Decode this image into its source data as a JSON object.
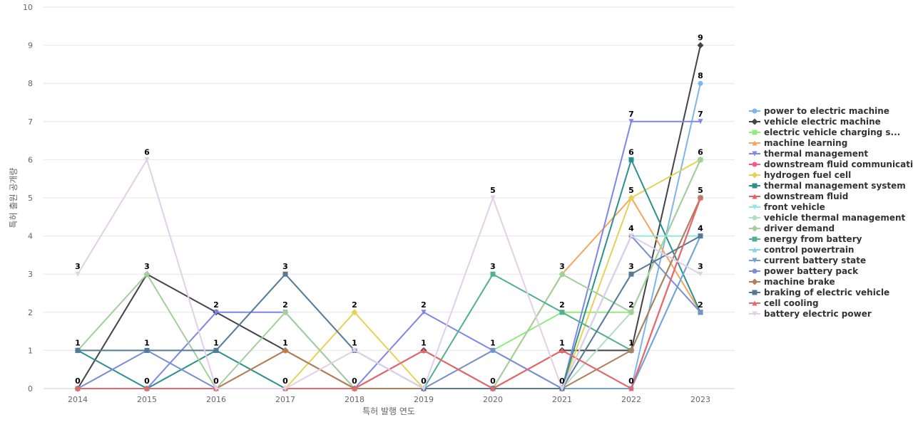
{
  "chart_data": {
    "type": "line",
    "title": "",
    "xlabel": "특허 발행 연도",
    "ylabel": "특허 출원 공개량",
    "x": [
      "2014",
      "2015",
      "2016",
      "2017",
      "2018",
      "2019",
      "2020",
      "2021",
      "2022",
      "2023"
    ],
    "ylim": [
      0,
      10
    ],
    "yticks": [
      0,
      1,
      2,
      3,
      4,
      5,
      6,
      7,
      8,
      9,
      10
    ],
    "grid": true,
    "legend": "right",
    "series": [
      {
        "name": "power to electric machine",
        "color": "#7cb5ec",
        "marker": "circle",
        "values": [
          0,
          0,
          0,
          0,
          0,
          0,
          0,
          0,
          0,
          8
        ]
      },
      {
        "name": "vehicle electric machine",
        "color": "#434348",
        "marker": "diamond",
        "values": [
          0,
          3,
          2,
          1,
          0,
          1,
          0,
          1,
          1,
          9
        ]
      },
      {
        "name": "electric vehicle charging s...",
        "color": "#90ed7d",
        "marker": "square",
        "values": [
          0,
          0,
          0,
          0,
          0,
          0,
          1,
          2,
          2,
          6
        ]
      },
      {
        "name": "machine learning",
        "color": "#f7a35c",
        "marker": "triangle",
        "values": [
          0,
          0,
          0,
          1,
          0,
          0,
          0,
          3,
          5,
          2
        ]
      },
      {
        "name": "thermal management",
        "color": "#8085e9",
        "marker": "triangle-down",
        "values": [
          0,
          0,
          2,
          2,
          0,
          2,
          1,
          0,
          7,
          7
        ]
      },
      {
        "name": "downstream fluid communication",
        "color": "#f15c80",
        "marker": "circle",
        "values": [
          0,
          0,
          0,
          0,
          0,
          0,
          0,
          0,
          0,
          5
        ]
      },
      {
        "name": "hydrogen fuel cell",
        "color": "#e4d354",
        "marker": "diamond",
        "values": [
          0,
          0,
          0,
          0,
          2,
          0,
          0,
          0,
          5,
          6
        ]
      },
      {
        "name": "thermal management system",
        "color": "#2b908f",
        "marker": "square",
        "values": [
          1,
          0,
          1,
          0,
          0,
          0,
          0,
          0,
          6,
          2
        ]
      },
      {
        "name": "downstream fluid",
        "color": "#f45b5b",
        "marker": "triangle",
        "values": [
          0,
          0,
          0,
          0,
          0,
          0,
          0,
          1,
          0,
          5
        ]
      },
      {
        "name": "front vehicle",
        "color": "#91e8e1",
        "marker": "triangle-down",
        "values": [
          0,
          0,
          0,
          0,
          0,
          0,
          0,
          0,
          4,
          4
        ]
      },
      {
        "name": "vehicle thermal management",
        "color": "#b5dcc8",
        "marker": "circle",
        "values": [
          0,
          0,
          0,
          0,
          0,
          0,
          0,
          0,
          2,
          6
        ]
      },
      {
        "name": "driver demand",
        "color": "#a3cf9b",
        "marker": "diamond",
        "values": [
          1,
          3,
          0,
          2,
          0,
          0,
          0,
          3,
          2,
          6
        ]
      },
      {
        "name": "energy from battery",
        "color": "#4fb092",
        "marker": "square",
        "values": [
          0,
          0,
          0,
          0,
          0,
          0,
          3,
          2,
          1,
          5
        ]
      },
      {
        "name": "control powertrain",
        "color": "#88d4e4",
        "marker": "triangle",
        "values": [
          0,
          0,
          0,
          0,
          0,
          0,
          0,
          0,
          0,
          4
        ]
      },
      {
        "name": "current battery state",
        "color": "#6fa3d8",
        "marker": "triangle-down",
        "values": [
          0,
          0,
          0,
          0,
          0,
          0,
          0,
          0,
          0,
          4
        ]
      },
      {
        "name": "power battery pack",
        "color": "#7a8fd0",
        "marker": "circle",
        "values": [
          0,
          1,
          0,
          0,
          0,
          0,
          1,
          0,
          4,
          2
        ]
      },
      {
        "name": "machine brake",
        "color": "#b07e5a",
        "marker": "diamond",
        "values": [
          0,
          0,
          0,
          1,
          0,
          0,
          0,
          0,
          1,
          5
        ]
      },
      {
        "name": "braking of electric vehicle",
        "color": "#547a96",
        "marker": "square",
        "values": [
          1,
          1,
          1,
          3,
          1,
          0,
          0,
          0,
          3,
          4
        ]
      },
      {
        "name": "cell cooling",
        "color": "#e8676a",
        "marker": "triangle",
        "values": [
          0,
          0,
          0,
          0,
          0,
          1,
          0,
          1,
          0,
          5
        ]
      },
      {
        "name": "battery electric power",
        "color": "#e2cfe8",
        "marker": "triangle-down",
        "values": [
          3,
          6,
          0,
          0,
          1,
          0,
          5,
          0,
          4,
          3
        ]
      }
    ],
    "data_labels": [
      {
        "x": "2014",
        "values": [
          0,
          1,
          3
        ]
      },
      {
        "x": "2015",
        "values": [
          0,
          1,
          3,
          6
        ]
      },
      {
        "x": "2016",
        "values": [
          0,
          1,
          2
        ]
      },
      {
        "x": "2017",
        "values": [
          0,
          1,
          2,
          3
        ]
      },
      {
        "x": "2018",
        "values": [
          0,
          1,
          2
        ]
      },
      {
        "x": "2019",
        "values": [
          0,
          1,
          2
        ]
      },
      {
        "x": "2020",
        "values": [
          0,
          1,
          3,
          5
        ]
      },
      {
        "x": "2021",
        "values": [
          0,
          1,
          2,
          3
        ]
      },
      {
        "x": "2022",
        "values": [
          0,
          1,
          2,
          3,
          4,
          5,
          6,
          7
        ]
      },
      {
        "x": "2023",
        "values": [
          2,
          3,
          4,
          5,
          6,
          7,
          8,
          9
        ]
      }
    ]
  }
}
